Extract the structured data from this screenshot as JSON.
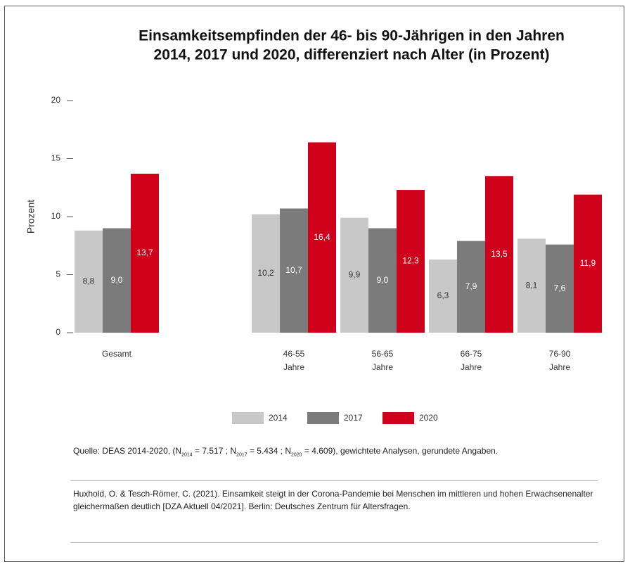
{
  "chart_data": {
    "type": "bar",
    "title": [
      "Einsamkeitsempfinden der 46- bis 90-Jährigen in den Jahren",
      "2014, 2017 und 2020, differenziert nach Alter (in Prozent)"
    ],
    "y_label": "Prozent",
    "categories": [
      [
        "Gesamt"
      ],
      [
        "46-55",
        "Jahre"
      ],
      [
        "56-65",
        "Jahre"
      ],
      [
        "66-75",
        "Jahre"
      ],
      [
        "76-90",
        "Jahre"
      ]
    ],
    "series": [
      {
        "name": "2014",
        "color": "#c8c8c8",
        "values": [
          8.8,
          10.2,
          9.9,
          6.3,
          8.1
        ],
        "value_labels": [
          "8,8",
          "10,2",
          "9,9",
          "6,3",
          "8,1"
        ]
      },
      {
        "name": "2017",
        "color": "#7b7b7b",
        "values": [
          9.0,
          10.7,
          9.0,
          7.9,
          7.6
        ],
        "value_labels": [
          "9,0",
          "10,7",
          "9,0",
          "7,9",
          "7,6"
        ]
      },
      {
        "name": "2020",
        "color": "#d0021b",
        "values": [
          13.7,
          16.4,
          12.3,
          13.5,
          11.9
        ],
        "value_labels": [
          "13,7",
          "16,4",
          "12,3",
          "13,5",
          "11,9"
        ]
      }
    ],
    "ylim": [
      0,
      20
    ],
    "yticks": [
      0,
      5,
      10,
      15,
      20
    ],
    "grid": false,
    "legend": "bottom"
  },
  "source": [
    "Quelle: DEAS 2014-2020, (N",
    "2014",
    " = 7.517 ; N",
    "2017",
    " = 5.434 ; N",
    "2020",
    " = 4.609), gewichtete Analysen, gerundete Angaben."
  ],
  "citation": "Huxhold, O. & Tesch-Römer, C. (2021). Einsamkeit steigt in der Corona-Pandemie bei Menschen im mittleren und hohen Erwachsenenalter gleichermaßen deutlich [DZA Aktuell 04/2021]. Berlin: Deutsches Zentrum für Altersfragen."
}
